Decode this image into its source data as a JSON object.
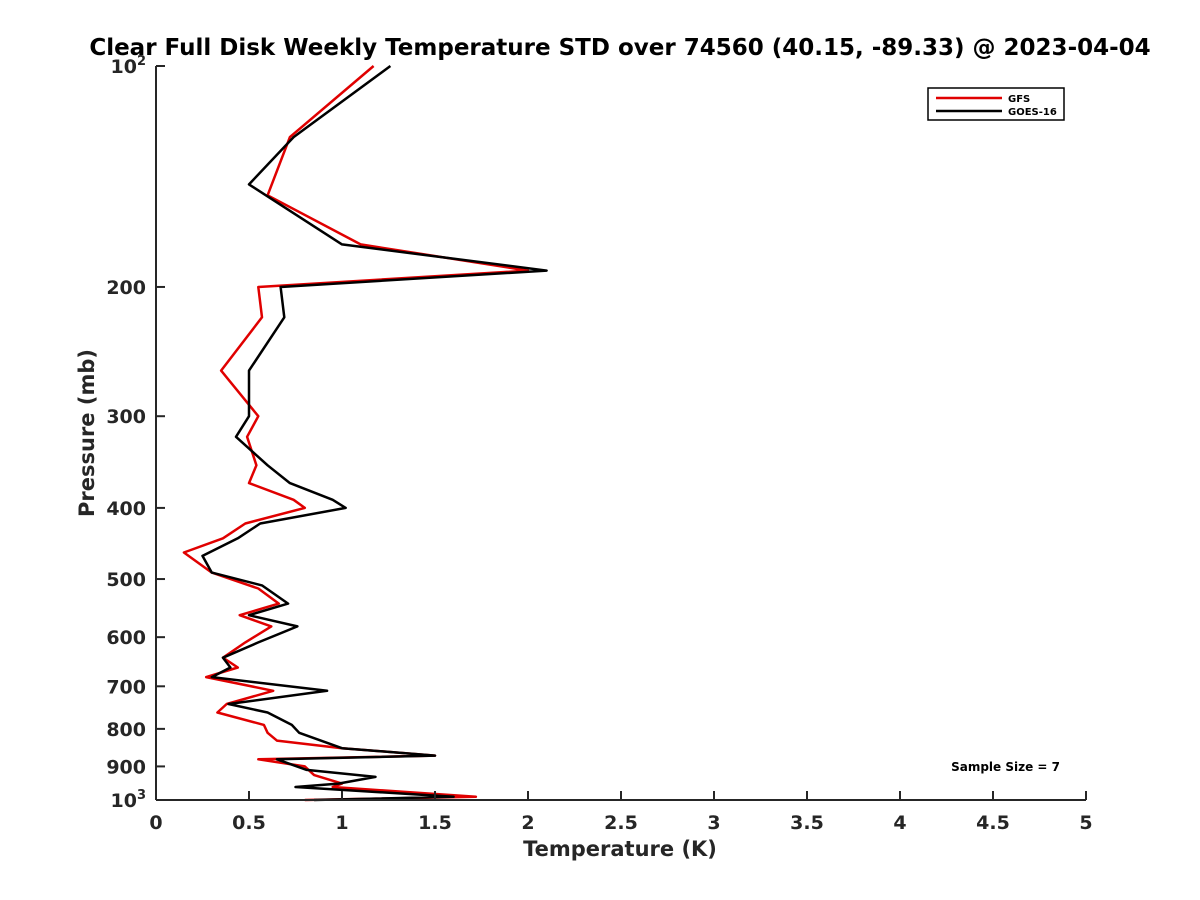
{
  "chart_data": {
    "type": "line",
    "title": "Clear Full Disk Weekly Temperature STD over 74560 (40.15, -89.33) @ 2023-04-04",
    "xlabel": "Temperature (K)",
    "ylabel": "Pressure (mb)",
    "xlim": [
      0,
      5
    ],
    "ylim": [
      100,
      1000
    ],
    "yscale": "log",
    "y_reversed": true,
    "grid": false,
    "legend_position": "top-right",
    "x_ticks": [
      0,
      0.5,
      1,
      1.5,
      2,
      2.5,
      3,
      3.5,
      4,
      4.5,
      5
    ],
    "x_tick_labels": [
      "0",
      "0.5",
      "1",
      "1.5",
      "2",
      "2.5",
      "3",
      "3.5",
      "4",
      "4.5",
      "5"
    ],
    "y_ticks": [
      100,
      200,
      300,
      400,
      500,
      600,
      700,
      800,
      900,
      1000
    ],
    "y_tick_labels": [
      {
        "base": "10",
        "exp": "2"
      },
      {
        "base": "200",
        "exp": ""
      },
      {
        "base": "300",
        "exp": ""
      },
      {
        "base": "400",
        "exp": ""
      },
      {
        "base": "500",
        "exp": ""
      },
      {
        "base": "600",
        "exp": ""
      },
      {
        "base": "700",
        "exp": ""
      },
      {
        "base": "800",
        "exp": ""
      },
      {
        "base": "900",
        "exp": ""
      },
      {
        "base": "10",
        "exp": "3"
      }
    ],
    "annotation": "Sample Size = 7",
    "series": [
      {
        "name": "GFS",
        "color": "#e00000",
        "points": [
          [
            1.17,
            100
          ],
          [
            0.72,
            125
          ],
          [
            0.6,
            150
          ],
          [
            1.1,
            175
          ],
          [
            2.0,
            190
          ],
          [
            0.55,
            200
          ],
          [
            0.57,
            220
          ],
          [
            0.35,
            260
          ],
          [
            0.55,
            300
          ],
          [
            0.49,
            320
          ],
          [
            0.54,
            350
          ],
          [
            0.5,
            370
          ],
          [
            0.74,
            390
          ],
          [
            0.8,
            400
          ],
          [
            0.48,
            420
          ],
          [
            0.36,
            440
          ],
          [
            0.15,
            460
          ],
          [
            0.3,
            490
          ],
          [
            0.55,
            515
          ],
          [
            0.66,
            540
          ],
          [
            0.45,
            560
          ],
          [
            0.62,
            580
          ],
          [
            0.48,
            610
          ],
          [
            0.36,
            640
          ],
          [
            0.44,
            660
          ],
          [
            0.27,
            680
          ],
          [
            0.63,
            710
          ],
          [
            0.38,
            740
          ],
          [
            0.33,
            760
          ],
          [
            0.58,
            790
          ],
          [
            0.6,
            810
          ],
          [
            0.65,
            830
          ],
          [
            1.0,
            850
          ],
          [
            1.5,
            870
          ],
          [
            0.55,
            880
          ],
          [
            0.8,
            900
          ],
          [
            0.85,
            925
          ],
          [
            1.0,
            950
          ],
          [
            0.95,
            960
          ],
          [
            1.72,
            990
          ],
          [
            0.8,
            1000
          ]
        ]
      },
      {
        "name": "GOES-16",
        "color": "#000000",
        "points": [
          [
            1.26,
            100
          ],
          [
            0.74,
            125
          ],
          [
            0.5,
            145
          ],
          [
            1.0,
            175
          ],
          [
            2.1,
            190
          ],
          [
            0.67,
            200
          ],
          [
            0.69,
            220
          ],
          [
            0.5,
            260
          ],
          [
            0.5,
            300
          ],
          [
            0.43,
            320
          ],
          [
            0.6,
            350
          ],
          [
            0.72,
            370
          ],
          [
            0.95,
            390
          ],
          [
            1.02,
            400
          ],
          [
            0.56,
            420
          ],
          [
            0.44,
            440
          ],
          [
            0.25,
            465
          ],
          [
            0.3,
            490
          ],
          [
            0.57,
            510
          ],
          [
            0.71,
            540
          ],
          [
            0.5,
            560
          ],
          [
            0.76,
            580
          ],
          [
            0.55,
            610
          ],
          [
            0.36,
            640
          ],
          [
            0.4,
            660
          ],
          [
            0.3,
            680
          ],
          [
            0.92,
            710
          ],
          [
            0.39,
            740
          ],
          [
            0.6,
            760
          ],
          [
            0.73,
            790
          ],
          [
            0.77,
            810
          ],
          [
            1.0,
            850
          ],
          [
            1.5,
            870
          ],
          [
            0.65,
            880
          ],
          [
            0.81,
            910
          ],
          [
            1.18,
            930
          ],
          [
            0.98,
            950
          ],
          [
            0.75,
            960
          ],
          [
            1.6,
            990
          ],
          [
            0.85,
            1000
          ]
        ]
      }
    ]
  }
}
